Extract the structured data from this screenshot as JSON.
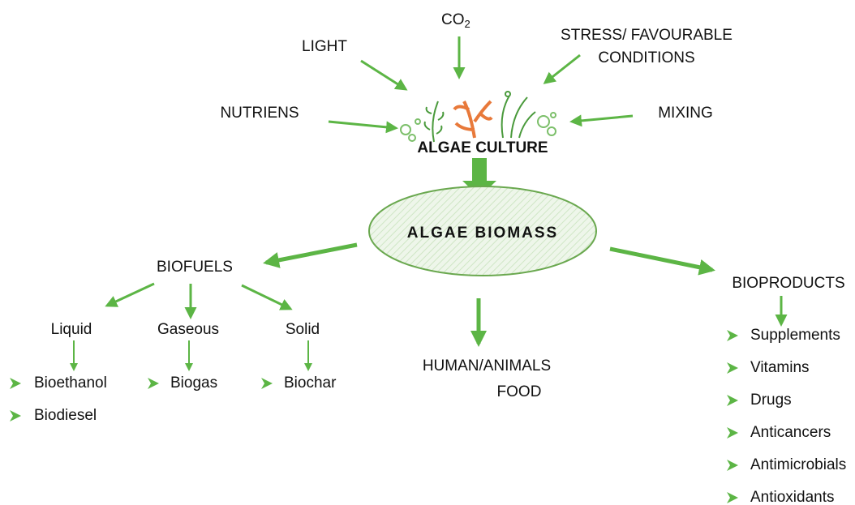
{
  "inputs": {
    "light": "LIGHT",
    "co2": {
      "text": "CO",
      "subscript": "2"
    },
    "stress": [
      "STRESS/ FAVOURABLE",
      "CONDITIONS"
    ],
    "nutrients": "NUTRIENS",
    "mixing": "MIXING"
  },
  "culture": "ALGAE CULTURE",
  "biomass": "ALGAE BIOMASS",
  "biofuels": {
    "title": "BIOFUELS",
    "types": [
      {
        "name": "Liquid",
        "items": [
          "Bioethanol",
          "Biodiesel"
        ]
      },
      {
        "name": "Gaseous",
        "items": [
          "Biogas"
        ]
      },
      {
        "name": "Solid",
        "items": [
          "Biochar"
        ]
      }
    ]
  },
  "food": [
    "HUMAN/ANIMALS",
    "FOOD"
  ],
  "bioproducts": {
    "title": "BIOPRODUCTS",
    "items": [
      "Supplements",
      "Vitamins",
      "Drugs",
      "Anticancers",
      "Antimicrobials",
      "Antioxidants"
    ]
  }
}
